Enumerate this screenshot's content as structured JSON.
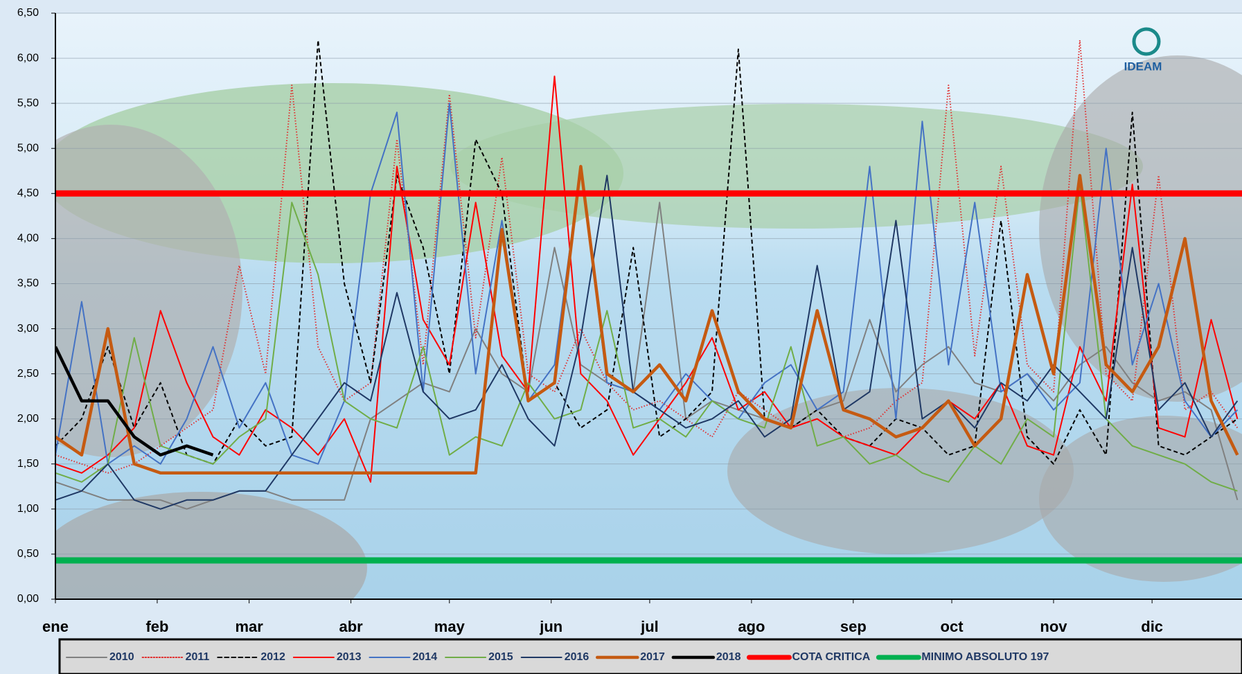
{
  "chart_data": {
    "type": "line",
    "logo": "IDEAM",
    "x": [
      1,
      9,
      17,
      25,
      33,
      41,
      49,
      57,
      65,
      73,
      81,
      89,
      97,
      105,
      113,
      121,
      129,
      137,
      145,
      153,
      161,
      169,
      177,
      185,
      193,
      201,
      209,
      217,
      225,
      233,
      241,
      249,
      257,
      265,
      273,
      281,
      289,
      297,
      305,
      313,
      321,
      329,
      337,
      345,
      353,
      361
    ],
    "xlim": [
      1,
      362
    ],
    "xticks": [
      {
        "value": 1,
        "label": "ene"
      },
      {
        "value": 32,
        "label": "feb"
      },
      {
        "value": 60,
        "label": "mar"
      },
      {
        "value": 91,
        "label": "abr"
      },
      {
        "value": 121,
        "label": "may"
      },
      {
        "value": 152,
        "label": "jun"
      },
      {
        "value": 182,
        "label": "jul"
      },
      {
        "value": 213,
        "label": "ago"
      },
      {
        "value": 244,
        "label": "sep"
      },
      {
        "value": 274,
        "label": "oct"
      },
      {
        "value": 305,
        "label": "nov"
      },
      {
        "value": 335,
        "label": "dic"
      }
    ],
    "ylim": [
      0,
      6.5
    ],
    "yticks": [
      {
        "value": 0,
        "label": "0,00"
      },
      {
        "value": 0.5,
        "label": "0,50"
      },
      {
        "value": 1,
        "label": "1,00"
      },
      {
        "value": 1.5,
        "label": "1,50"
      },
      {
        "value": 2,
        "label": "2,00"
      },
      {
        "value": 2.5,
        "label": "2,50"
      },
      {
        "value": 3,
        "label": "3,00"
      },
      {
        "value": 3.5,
        "label": "3,50"
      },
      {
        "value": 4,
        "label": "4,00"
      },
      {
        "value": 4.5,
        "label": "4,50"
      },
      {
        "value": 5,
        "label": "5,00"
      },
      {
        "value": 5.5,
        "label": "5,50"
      },
      {
        "value": 6,
        "label": "6,00"
      },
      {
        "value": 6.5,
        "label": "6,50"
      }
    ],
    "grid": true,
    "series": [
      {
        "name": "2010",
        "color": "#808080",
        "style": "solid",
        "bold": false,
        "values": [
          1.3,
          1.2,
          1.1,
          1.1,
          1.1,
          1.0,
          1.1,
          1.2,
          1.2,
          1.1,
          1.1,
          1.1,
          2.0,
          2.2,
          2.4,
          2.3,
          3.0,
          2.5,
          2.3,
          3.9,
          2.6,
          2.4,
          2.3,
          4.4,
          2.0,
          2.2,
          2.1,
          2.0,
          1.9,
          2.1,
          2.2,
          3.1,
          2.3,
          2.6,
          2.8,
          2.4,
          2.3,
          2.5,
          2.2,
          2.6,
          2.8,
          2.4,
          2.2,
          2.3,
          2.1,
          1.1
        ]
      },
      {
        "name": "2011",
        "color": "#e03030",
        "style": "dotted",
        "bold": false,
        "values": [
          1.6,
          1.5,
          1.4,
          1.5,
          1.7,
          1.9,
          2.1,
          3.7,
          2.5,
          5.7,
          2.8,
          2.2,
          2.4,
          5.1,
          2.6,
          5.6,
          2.9,
          4.9,
          2.5,
          2.3,
          3.0,
          2.4,
          2.1,
          2.2,
          2.0,
          1.8,
          2.3,
          2.1,
          1.9,
          2.0,
          1.8,
          1.9,
          2.2,
          2.4,
          5.7,
          2.7,
          4.8,
          2.6,
          2.3,
          6.2,
          2.5,
          2.2,
          4.7,
          2.1,
          2.3,
          1.9
        ]
      },
      {
        "name": "2012",
        "color": "#000000",
        "style": "dashed",
        "bold": false,
        "values": [
          1.7,
          2.0,
          2.8,
          1.9,
          2.4,
          1.6,
          1.5,
          2.0,
          1.7,
          1.8,
          6.2,
          3.5,
          2.4,
          4.7,
          3.9,
          2.5,
          5.1,
          4.5,
          2.2,
          2.4,
          1.9,
          2.1,
          3.9,
          1.8,
          2.0,
          2.3,
          6.1,
          2.0,
          1.9,
          2.1,
          1.8,
          1.7,
          2.0,
          1.9,
          1.6,
          1.7,
          4.2,
          1.8,
          1.5,
          2.1,
          1.6,
          5.4,
          1.7,
          1.6,
          1.8,
          2.0
        ]
      },
      {
        "name": "2013",
        "color": "#ff0000",
        "style": "solid",
        "bold": false,
        "values": [
          1.5,
          1.4,
          1.6,
          1.9,
          3.2,
          2.4,
          1.8,
          1.6,
          2.1,
          1.9,
          1.6,
          2.0,
          1.3,
          4.8,
          3.1,
          2.6,
          4.4,
          2.7,
          2.3,
          5.8,
          2.5,
          2.2,
          1.6,
          2.0,
          2.4,
          2.9,
          2.1,
          2.3,
          1.9,
          2.0,
          1.8,
          1.7,
          1.6,
          1.9,
          2.2,
          2.0,
          2.4,
          1.7,
          1.6,
          2.8,
          2.2,
          4.6,
          1.9,
          1.8,
          3.1,
          2.0
        ]
      },
      {
        "name": "2014",
        "color": "#4472c4",
        "style": "solid",
        "bold": false,
        "values": [
          1.6,
          3.3,
          1.5,
          1.7,
          1.5,
          2.0,
          2.8,
          1.9,
          2.4,
          1.6,
          1.5,
          2.2,
          4.5,
          5.4,
          2.3,
          5.5,
          2.5,
          4.2,
          2.2,
          2.6,
          4.8,
          2.4,
          2.3,
          2.1,
          2.5,
          2.2,
          2.0,
          2.4,
          2.6,
          2.1,
          2.3,
          4.8,
          2.0,
          5.3,
          2.6,
          4.4,
          2.3,
          2.5,
          2.1,
          2.4,
          5.0,
          2.6,
          3.5,
          2.2,
          1.8,
          2.1
        ]
      },
      {
        "name": "2015",
        "color": "#70ad47",
        "style": "solid",
        "bold": false,
        "values": [
          1.4,
          1.3,
          1.5,
          2.9,
          1.7,
          1.6,
          1.5,
          1.8,
          2.0,
          4.4,
          3.6,
          2.2,
          2.0,
          1.9,
          2.8,
          1.6,
          1.8,
          1.7,
          2.4,
          2.0,
          2.1,
          3.2,
          1.9,
          2.0,
          1.8,
          2.2,
          2.0,
          1.9,
          2.8,
          1.7,
          1.8,
          1.5,
          1.6,
          1.4,
          1.3,
          1.7,
          1.5,
          2.0,
          1.8,
          4.6,
          2.0,
          1.7,
          1.6,
          1.5,
          1.3,
          1.2
        ]
      },
      {
        "name": "2016",
        "color": "#1f3864",
        "style": "solid",
        "bold": false,
        "values": [
          1.1,
          1.2,
          1.5,
          1.1,
          1.0,
          1.1,
          1.1,
          1.2,
          1.2,
          1.6,
          2.0,
          2.4,
          2.2,
          3.4,
          2.3,
          2.0,
          2.1,
          2.6,
          2.0,
          1.7,
          2.9,
          4.7,
          2.3,
          2.1,
          1.9,
          2.0,
          2.2,
          1.8,
          2.0,
          3.7,
          2.1,
          2.3,
          4.2,
          2.0,
          2.2,
          1.9,
          2.4,
          2.2,
          2.6,
          2.3,
          2.0,
          3.9,
          2.1,
          2.4,
          1.8,
          2.2
        ]
      },
      {
        "name": "2017",
        "color": "#c55a11",
        "style": "solid",
        "bold": true,
        "values": [
          1.8,
          1.6,
          3.0,
          1.5,
          1.4,
          1.4,
          1.4,
          1.4,
          1.4,
          1.4,
          1.4,
          1.4,
          1.4,
          1.4,
          1.4,
          1.4,
          1.4,
          4.1,
          2.2,
          2.4,
          4.8,
          2.5,
          2.3,
          2.6,
          2.2,
          3.2,
          2.3,
          2.0,
          1.9,
          3.2,
          2.1,
          2.0,
          1.8,
          1.9,
          2.2,
          1.7,
          2.0,
          3.6,
          2.5,
          4.7,
          2.6,
          2.3,
          2.8,
          4.0,
          2.2,
          1.6
        ]
      },
      {
        "name": "2018",
        "color": "#000000",
        "style": "solid",
        "bold": true,
        "values": [
          2.8,
          2.2,
          2.2,
          1.8,
          1.6,
          1.7,
          1.6,
          null,
          null,
          null,
          null,
          null,
          null,
          null,
          null,
          null,
          null,
          null,
          null,
          null,
          null,
          null,
          null,
          null,
          null,
          null,
          null,
          null,
          null,
          null,
          null,
          null,
          null,
          null,
          null,
          null,
          null,
          null,
          null,
          null,
          null,
          null,
          null,
          null,
          null,
          null
        ]
      }
    ],
    "reference_lines": [
      {
        "name": "COTA CRITICA",
        "value": 4.5,
        "color": "#ff0000"
      },
      {
        "name": "MINIMO ABSOLUTO 197",
        "value": 0.43,
        "color": "#00b050"
      }
    ]
  }
}
